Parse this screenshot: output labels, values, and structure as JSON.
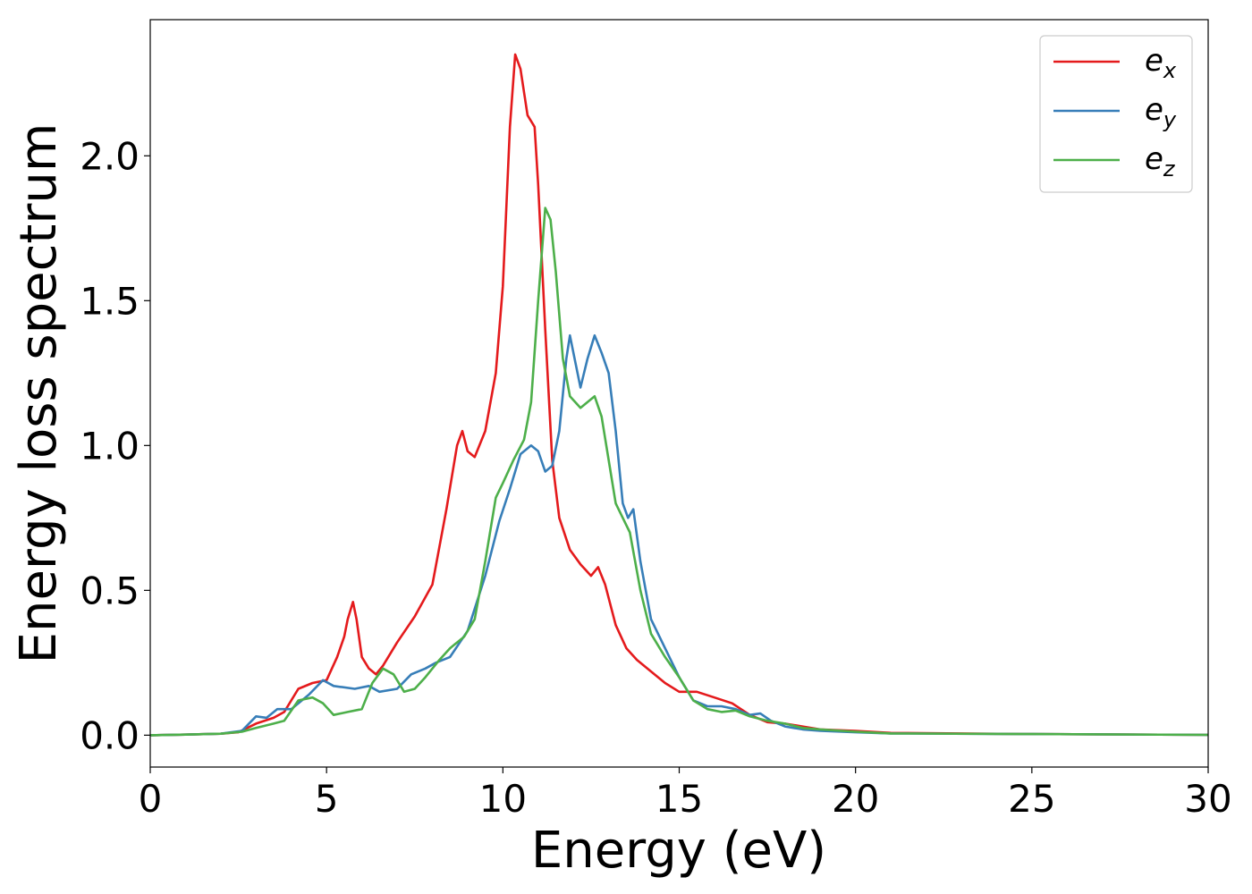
{
  "chart_data": {
    "type": "line",
    "xlabel": "Energy (eV)",
    "ylabel": "Energy loss spectrum",
    "xlim": [
      0,
      30
    ],
    "ylim": [
      -0.11,
      2.47
    ],
    "xticks": [
      0,
      5,
      10,
      15,
      20,
      25,
      30
    ],
    "yticks": [
      0.0,
      0.5,
      1.0,
      1.5,
      2.0
    ],
    "xtick_labels": [
      "0",
      "5",
      "10",
      "15",
      "20",
      "25",
      "30"
    ],
    "ytick_labels": [
      "0.0",
      "0.5",
      "1.0",
      "1.5",
      "2.0"
    ],
    "grid": false,
    "legend_position": "top-right",
    "series": [
      {
        "name": "e_x",
        "base": "e",
        "sub": "x",
        "color": "#e41a1c",
        "points": [
          [
            0,
            0
          ],
          [
            1,
            0.002
          ],
          [
            2,
            0.005
          ],
          [
            2.5,
            0.01
          ],
          [
            3,
            0.04
          ],
          [
            3.5,
            0.06
          ],
          [
            3.8,
            0.08
          ],
          [
            4.2,
            0.16
          ],
          [
            4.6,
            0.18
          ],
          [
            5.0,
            0.19
          ],
          [
            5.3,
            0.27
          ],
          [
            5.5,
            0.34
          ],
          [
            5.6,
            0.4
          ],
          [
            5.75,
            0.46
          ],
          [
            5.85,
            0.4
          ],
          [
            6.0,
            0.27
          ],
          [
            6.2,
            0.23
          ],
          [
            6.4,
            0.21
          ],
          [
            6.6,
            0.24
          ],
          [
            7.0,
            0.32
          ],
          [
            7.5,
            0.41
          ],
          [
            8.0,
            0.52
          ],
          [
            8.4,
            0.78
          ],
          [
            8.7,
            1.0
          ],
          [
            8.85,
            1.05
          ],
          [
            9.0,
            0.98
          ],
          [
            9.2,
            0.96
          ],
          [
            9.5,
            1.05
          ],
          [
            9.8,
            1.25
          ],
          [
            10.0,
            1.55
          ],
          [
            10.2,
            2.1
          ],
          [
            10.35,
            2.35
          ],
          [
            10.5,
            2.3
          ],
          [
            10.7,
            2.14
          ],
          [
            10.9,
            2.1
          ],
          [
            11.0,
            1.9
          ],
          [
            11.2,
            1.4
          ],
          [
            11.4,
            0.95
          ],
          [
            11.6,
            0.75
          ],
          [
            11.9,
            0.64
          ],
          [
            12.2,
            0.59
          ],
          [
            12.5,
            0.55
          ],
          [
            12.7,
            0.58
          ],
          [
            12.9,
            0.52
          ],
          [
            13.2,
            0.38
          ],
          [
            13.5,
            0.3
          ],
          [
            13.8,
            0.26
          ],
          [
            14.2,
            0.22
          ],
          [
            14.6,
            0.18
          ],
          [
            15.0,
            0.15
          ],
          [
            15.5,
            0.15
          ],
          [
            16.0,
            0.13
          ],
          [
            16.5,
            0.11
          ],
          [
            17.0,
            0.07
          ],
          [
            17.5,
            0.045
          ],
          [
            18.0,
            0.04
          ],
          [
            18.5,
            0.03
          ],
          [
            19.0,
            0.02
          ],
          [
            20.0,
            0.015
          ],
          [
            21.0,
            0.008
          ],
          [
            25.0,
            0.004
          ],
          [
            30.0,
            0.001
          ]
        ]
      },
      {
        "name": "e_y",
        "base": "e",
        "sub": "y",
        "color": "#377eb8",
        "points": [
          [
            0,
            0
          ],
          [
            1,
            0.002
          ],
          [
            2,
            0.005
          ],
          [
            2.6,
            0.015
          ],
          [
            3.0,
            0.065
          ],
          [
            3.3,
            0.06
          ],
          [
            3.6,
            0.09
          ],
          [
            4.0,
            0.09
          ],
          [
            4.5,
            0.14
          ],
          [
            4.9,
            0.19
          ],
          [
            5.2,
            0.17
          ],
          [
            5.8,
            0.16
          ],
          [
            6.2,
            0.17
          ],
          [
            6.5,
            0.15
          ],
          [
            7.0,
            0.16
          ],
          [
            7.4,
            0.21
          ],
          [
            7.8,
            0.23
          ],
          [
            8.1,
            0.25
          ],
          [
            8.5,
            0.27
          ],
          [
            9.0,
            0.36
          ],
          [
            9.5,
            0.55
          ],
          [
            9.9,
            0.74
          ],
          [
            10.2,
            0.85
          ],
          [
            10.5,
            0.97
          ],
          [
            10.8,
            1.0
          ],
          [
            11.0,
            0.98
          ],
          [
            11.2,
            0.91
          ],
          [
            11.4,
            0.93
          ],
          [
            11.6,
            1.05
          ],
          [
            11.8,
            1.3
          ],
          [
            11.9,
            1.38
          ],
          [
            12.0,
            1.32
          ],
          [
            12.2,
            1.2
          ],
          [
            12.4,
            1.3
          ],
          [
            12.6,
            1.38
          ],
          [
            12.8,
            1.32
          ],
          [
            13.0,
            1.25
          ],
          [
            13.2,
            1.05
          ],
          [
            13.4,
            0.8
          ],
          [
            13.55,
            0.75
          ],
          [
            13.7,
            0.78
          ],
          [
            13.9,
            0.6
          ],
          [
            14.2,
            0.4
          ],
          [
            14.6,
            0.3
          ],
          [
            15.0,
            0.2
          ],
          [
            15.4,
            0.12
          ],
          [
            15.8,
            0.1
          ],
          [
            16.2,
            0.1
          ],
          [
            16.6,
            0.09
          ],
          [
            17.0,
            0.07
          ],
          [
            17.3,
            0.075
          ],
          [
            17.6,
            0.05
          ],
          [
            18.0,
            0.03
          ],
          [
            18.5,
            0.02
          ],
          [
            19.0,
            0.015
          ],
          [
            20.0,
            0.01
          ],
          [
            21.0,
            0.006
          ],
          [
            25.0,
            0.004
          ],
          [
            30.0,
            0.001
          ]
        ]
      },
      {
        "name": "e_z",
        "base": "e",
        "sub": "z",
        "color": "#4daf4a",
        "points": [
          [
            0,
            0
          ],
          [
            1,
            0.002
          ],
          [
            2,
            0.005
          ],
          [
            2.6,
            0.012
          ],
          [
            3.0,
            0.025
          ],
          [
            3.5,
            0.04
          ],
          [
            3.8,
            0.05
          ],
          [
            4.2,
            0.12
          ],
          [
            4.6,
            0.13
          ],
          [
            4.9,
            0.11
          ],
          [
            5.2,
            0.07
          ],
          [
            5.6,
            0.08
          ],
          [
            6.0,
            0.09
          ],
          [
            6.3,
            0.18
          ],
          [
            6.6,
            0.23
          ],
          [
            6.9,
            0.21
          ],
          [
            7.2,
            0.15
          ],
          [
            7.5,
            0.16
          ],
          [
            7.8,
            0.2
          ],
          [
            8.2,
            0.26
          ],
          [
            8.5,
            0.3
          ],
          [
            8.9,
            0.34
          ],
          [
            9.2,
            0.4
          ],
          [
            9.5,
            0.6
          ],
          [
            9.8,
            0.82
          ],
          [
            10.0,
            0.87
          ],
          [
            10.3,
            0.95
          ],
          [
            10.6,
            1.02
          ],
          [
            10.8,
            1.15
          ],
          [
            11.0,
            1.5
          ],
          [
            11.2,
            1.82
          ],
          [
            11.35,
            1.78
          ],
          [
            11.5,
            1.6
          ],
          [
            11.7,
            1.3
          ],
          [
            11.9,
            1.17
          ],
          [
            12.2,
            1.13
          ],
          [
            12.4,
            1.15
          ],
          [
            12.6,
            1.17
          ],
          [
            12.8,
            1.1
          ],
          [
            13.0,
            0.95
          ],
          [
            13.2,
            0.8
          ],
          [
            13.4,
            0.75
          ],
          [
            13.6,
            0.7
          ],
          [
            13.9,
            0.5
          ],
          [
            14.2,
            0.35
          ],
          [
            14.6,
            0.27
          ],
          [
            15.0,
            0.2
          ],
          [
            15.4,
            0.12
          ],
          [
            15.8,
            0.09
          ],
          [
            16.2,
            0.08
          ],
          [
            16.6,
            0.085
          ],
          [
            17.0,
            0.065
          ],
          [
            17.5,
            0.05
          ],
          [
            18.0,
            0.04
          ],
          [
            18.5,
            0.025
          ],
          [
            19.0,
            0.02
          ],
          [
            20.0,
            0.012
          ],
          [
            21.0,
            0.006
          ],
          [
            25.0,
            0.004
          ],
          [
            30.0,
            0.001
          ]
        ]
      }
    ]
  }
}
